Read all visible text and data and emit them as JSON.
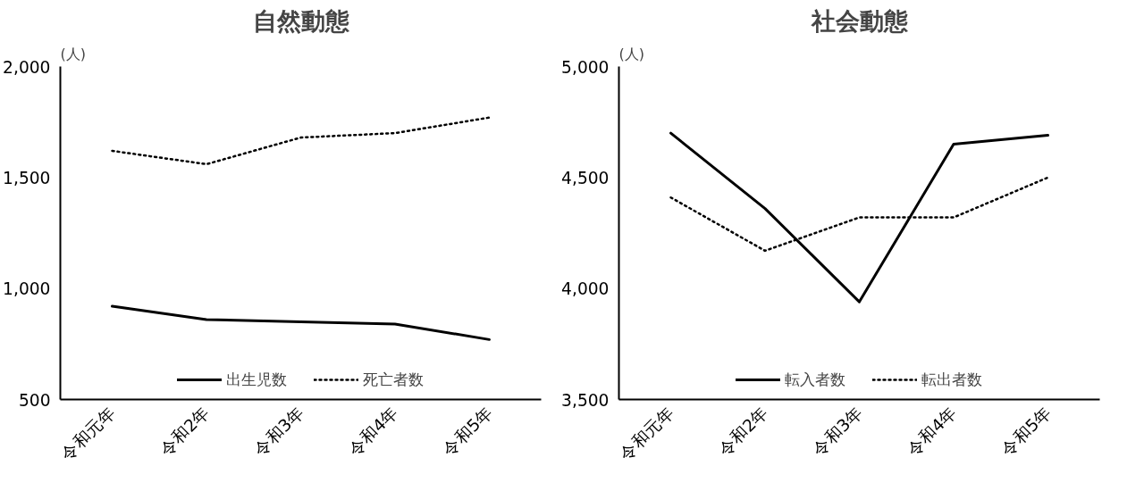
{
  "chart_data": [
    {
      "type": "line",
      "title": "自然動態",
      "ylabel": "(人)",
      "categories": [
        "令和元年",
        "令和2年",
        "令和3年",
        "令和4年",
        "令和5年"
      ],
      "ylim": [
        500,
        2000
      ],
      "yticks": [
        {
          "value": 500,
          "label": "500"
        },
        {
          "value": 1000,
          "label": "1,000"
        },
        {
          "value": 1500,
          "label": "1,500"
        },
        {
          "value": 2000,
          "label": "2,000"
        }
      ],
      "grid": false,
      "legend": "bottom",
      "series": [
        {
          "name": "出生児数",
          "color": "#000000",
          "line_style": "solid",
          "values": [
            920,
            860,
            850,
            840,
            770
          ]
        },
        {
          "name": "死亡者数",
          "color": "#000000",
          "line_style": "dotted",
          "values": [
            1620,
            1560,
            1680,
            1700,
            1770
          ]
        }
      ]
    },
    {
      "type": "line",
      "title": "社会動態",
      "ylabel": "(人)",
      "categories": [
        "令和元年",
        "令和2年",
        "令和3年",
        "令和4年",
        "令和5年"
      ],
      "ylim": [
        3500,
        5000
      ],
      "yticks": [
        {
          "value": 3500,
          "label": "3,500"
        },
        {
          "value": 4000,
          "label": "4,000"
        },
        {
          "value": 4500,
          "label": "4,500"
        },
        {
          "value": 5000,
          "label": "5,000"
        }
      ],
      "grid": false,
      "legend": "bottom",
      "series": [
        {
          "name": "転入者数",
          "color": "#000000",
          "line_style": "solid",
          "values": [
            4700,
            4360,
            3940,
            4650,
            4690
          ]
        },
        {
          "name": "転出者数",
          "color": "#000000",
          "line_style": "dotted",
          "values": [
            4410,
            4170,
            4320,
            4320,
            4500
          ]
        }
      ]
    }
  ]
}
